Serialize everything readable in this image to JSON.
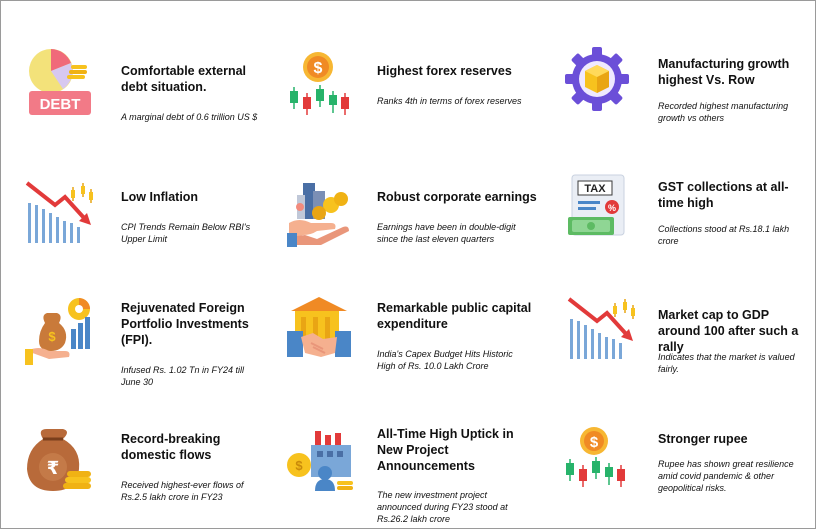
{
  "items": [
    {
      "title": "Comfortable external debt situation.",
      "desc": "A marginal debt of 0.6 trillion US $",
      "icon": "debt-pie-coins-icon",
      "icon_text": "DEBT"
    },
    {
      "title": "Highest forex reserves",
      "desc": "Ranks 4th in terms of forex reserves",
      "icon": "dollar-candlestick-icon"
    },
    {
      "title": "Manufacturing growth highest Vs. Row",
      "desc": "Recorded highest manufacturing growth vs others",
      "icon": "gear-box-icon"
    },
    {
      "title": "Low Inflation",
      "desc": "CPI Trends Remain Below RBI's Upper Limit",
      "icon": "declining-bars-icon"
    },
    {
      "title": "Robust corporate earnings",
      "desc": "Earnings have been in double-digit since the last  eleven quarters",
      "icon": "hand-buildings-coins-icon"
    },
    {
      "title": "GST collections at all-time high",
      "desc": "Collections stood at Rs.18.1 lakh crore",
      "icon": "tax-document-icon",
      "icon_text": "TAX"
    },
    {
      "title": "Rejuvenated Foreign Portfolio Investments (FPI).",
      "desc": "Infused Rs. 1.02 Tn in FY24 till June 30",
      "icon": "hand-money-bag-chart-icon"
    },
    {
      "title": "Remarkable public capital expenditure",
      "desc": "India's Capex Budget Hits Historic High of Rs. 10.0 Lakh Crore",
      "icon": "handshake-building-icon"
    },
    {
      "title": "Market cap to GDP around 100 after such a rally",
      "desc": "Indicates that the market is valued fairly.",
      "icon": "declining-bars-icon"
    },
    {
      "title": "Record-breaking domestic flows",
      "desc": "Received highest-ever flows of Rs.2.5 lakh crore in FY23",
      "icon": "rupee-bag-coins-icon"
    },
    {
      "title": "All-Time High Uptick in New Project Announcements",
      "desc": "The new investment project announced during FY23 stood at Rs.26.2 lakh crore",
      "icon": "factory-coins-icon"
    },
    {
      "title": "Stronger rupee",
      "desc": "Rupee has shown great resilience amid covid pandemic & other geopolitical risks.",
      "icon": "rupee-candlestick-icon"
    }
  ],
  "colors": {
    "red": "#e23a3a",
    "green": "#27b36a",
    "blue": "#4a86c7",
    "orange": "#f08a24",
    "yellow": "#f7c21e",
    "purple": "#6b4fd8",
    "pink": "#f06a7a"
  }
}
